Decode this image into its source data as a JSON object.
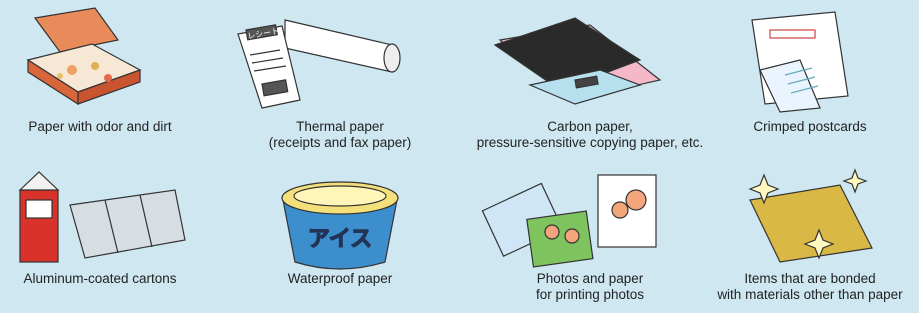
{
  "items": [
    {
      "caption": [
        "Paper with odor and dirt"
      ]
    },
    {
      "caption": [
        "Thermal paper",
        "(receipts and fax paper)"
      ],
      "illustration_text": "レシート"
    },
    {
      "caption": [
        "Carbon paper,",
        "pressure-sensitive copying paper, etc."
      ]
    },
    {
      "caption": [
        "Crimped postcards"
      ]
    },
    {
      "caption": [
        "Aluminum-coated cartons"
      ]
    },
    {
      "caption": [
        "Waterproof paper"
      ],
      "illustration_text": "アイス"
    },
    {
      "caption": [
        "Photos and paper",
        "for printing photos"
      ]
    },
    {
      "caption": [
        "Items that are bonded",
        "with materials other than paper"
      ]
    }
  ]
}
